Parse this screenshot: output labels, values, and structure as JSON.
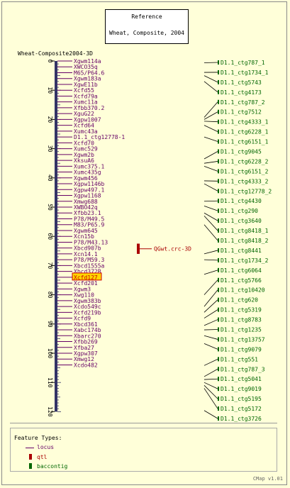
{
  "reference": {
    "line1": "Reference",
    "line2": "Wheat, Composite, 2004"
  },
  "map_title": "Wheat-Composite2004-3D",
  "axis_ticks": [
    "0",
    "10",
    "20",
    "30",
    "40",
    "50",
    "60",
    "70",
    "80",
    "90",
    "100",
    "110",
    "120"
  ],
  "loci": [
    {
      "label": "Xgwm114a",
      "pos": 0.0
    },
    {
      "label": "XWCO35q",
      "pos": 2.0
    },
    {
      "label": "M65/P64.6",
      "pos": 4.0
    },
    {
      "label": "Xgwm183a",
      "pos": 6.0
    },
    {
      "label": "XgwE11b",
      "pos": 8.0
    },
    {
      "label": "Xcfd55",
      "pos": 10.0
    },
    {
      "label": "Xcfd79a",
      "pos": 12.0
    },
    {
      "label": "Xumc11a",
      "pos": 14.0
    },
    {
      "label": "Xfbb370.2",
      "pos": 16.0
    },
    {
      "label": "XguG22",
      "pos": 18.0
    },
    {
      "label": "Xgpw1007",
      "pos": 20.0
    },
    {
      "label": "Xcfd64",
      "pos": 22.0
    },
    {
      "label": "Xumc43a",
      "pos": 24.0
    },
    {
      "label": "D1.1_ctg12778-1",
      "pos": 26.0
    },
    {
      "label": "Xcfd70",
      "pos": 28.0
    },
    {
      "label": "Xumc529",
      "pos": 30.0
    },
    {
      "label": "Xgwm2b",
      "pos": 32.0
    },
    {
      "label": "XksuA6",
      "pos": 34.0
    },
    {
      "label": "Xumc375.1",
      "pos": 36.0
    },
    {
      "label": "Xumc435g",
      "pos": 38.0
    },
    {
      "label": "Xgwm456",
      "pos": 40.0
    },
    {
      "label": "Xgpw1146b",
      "pos": 42.0
    },
    {
      "label": "Xgpw497.1",
      "pos": 44.0
    },
    {
      "label": "Xgpw1168",
      "pos": 46.0
    },
    {
      "label": "Xmwg688",
      "pos": 48.0
    },
    {
      "label": "XWBO42q",
      "pos": 50.0
    },
    {
      "label": "Xfbb23.1",
      "pos": 52.0
    },
    {
      "label": "P78/M49.5",
      "pos": 54.0
    },
    {
      "label": "M83/P65.9",
      "pos": 56.0
    },
    {
      "label": "Xgwm645",
      "pos": 58.0
    },
    {
      "label": "Xcn15b",
      "pos": 60.0
    },
    {
      "label": "P78/M43.13",
      "pos": 62.0
    },
    {
      "label": "Xbcd907b",
      "pos": 64.0
    },
    {
      "label": "Xcn14.1",
      "pos": 66.0
    },
    {
      "label": "P78/M59.3",
      "pos": 68.0
    },
    {
      "label": "Xbcd1555a",
      "pos": 70.0
    },
    {
      "label": "Xbcd372B",
      "pos": 72.0
    },
    {
      "label": "Xcfd127",
      "pos": 74.0,
      "highlight": true
    },
    {
      "label": "Xcfd201",
      "pos": 76.0
    },
    {
      "label": "Xgwm3",
      "pos": 78.0
    },
    {
      "label": "Xwg110",
      "pos": 80.0
    },
    {
      "label": "Xgwm383b",
      "pos": 82.0
    },
    {
      "label": "Xcdo549c",
      "pos": 84.0
    },
    {
      "label": "Xcfd219b",
      "pos": 86.0
    },
    {
      "label": "Xcfd9",
      "pos": 88.0
    },
    {
      "label": "Xbcd361",
      "pos": 90.0
    },
    {
      "label": "Xabc174b",
      "pos": 92.0
    },
    {
      "label": "Xbarc270",
      "pos": 94.0
    },
    {
      "label": "Xfbb269",
      "pos": 96.0
    },
    {
      "label": "Xfba27",
      "pos": 98.0
    },
    {
      "label": "Xgpw307",
      "pos": 100.0
    },
    {
      "label": "Xmwg12",
      "pos": 102.0
    },
    {
      "label": "Xcdo482",
      "pos": 104.0
    }
  ],
  "qtl": {
    "label": "QGwt.crc-3D"
  },
  "contigs": [
    {
      "label": "D1.1_ctg787_1",
      "pos": 0.6
    },
    {
      "label": "D1.1_ctg1734_1",
      "pos": 3.9
    },
    {
      "label": "D1.1_ctg5743",
      "pos": 5.0
    },
    {
      "label": "D1.1_ctg4173",
      "pos": 7.0
    },
    {
      "label": "D1.1_ctg787_2",
      "pos": 19.3
    },
    {
      "label": "D1.1_ctg7512",
      "pos": 20.0
    },
    {
      "label": "D1.1_ctg4333_1",
      "pos": 20.6
    },
    {
      "label": "D1.1_ctg6228_1",
      "pos": 22.0
    },
    {
      "label": "D1.1_ctg6151_1",
      "pos": 26.0
    },
    {
      "label": "D1.1_ctg9045",
      "pos": 33.5
    },
    {
      "label": "D1.1_ctg6228_2",
      "pos": 35.0
    },
    {
      "label": "D1.1_ctg6151_2",
      "pos": 36.0
    },
    {
      "label": "D1.1_ctg4333_2",
      "pos": 41.0
    },
    {
      "label": "D1.1_ctg12778_2",
      "pos": 42.0
    },
    {
      "label": "D1.1_ctg4430",
      "pos": 48.0
    },
    {
      "label": "D1.1_ctg290",
      "pos": 49.6
    },
    {
      "label": "D1.1_ctg3640",
      "pos": 52.0
    },
    {
      "label": "D1.1_ctg8418_1",
      "pos": 53.0
    },
    {
      "label": "D1.1_ctg8418_2",
      "pos": 56.0
    },
    {
      "label": "D1.1_ctg8441",
      "pos": 66.0
    },
    {
      "label": "D1.1_ctg1734_2",
      "pos": 68.0
    },
    {
      "label": "D1.1_ctg6064",
      "pos": 73.0
    },
    {
      "label": "D1.1_ctg5766",
      "pos": 80.0
    },
    {
      "label": "D1.1_ctg10420",
      "pos": 84.0
    },
    {
      "label": "D1.1_ctg620",
      "pos": 86.0
    },
    {
      "label": "D1.1_ctg5319",
      "pos": 88.0
    },
    {
      "label": "D1.1_ctg8783",
      "pos": 90.5
    },
    {
      "label": "D1.1_ctg1235",
      "pos": 92.0
    },
    {
      "label": "D1.1_ctg13757",
      "pos": 94.0
    },
    {
      "label": "D1.1_ctg9079",
      "pos": 96.7
    },
    {
      "label": "D1.1_ctg551",
      "pos": 104.2
    },
    {
      "label": "D1.1_ctg787_3",
      "pos": 108.0
    },
    {
      "label": "D1.1_ctg5041",
      "pos": 109.0
    },
    {
      "label": "D1.1_ctg9019",
      "pos": 110.0
    },
    {
      "label": "D1.1_ctg5195",
      "pos": 111.0
    },
    {
      "label": "D1.1_ctg5172",
      "pos": 112.0
    },
    {
      "label": "D1.1_ctg3726",
      "pos": 119.6
    }
  ],
  "legend": {
    "title": "Feature Types:",
    "items": [
      "locus",
      "qtl",
      "baccontig"
    ]
  },
  "footer": "CMap v1.01",
  "colors": {
    "background": "#ffffd9",
    "locus": "#660066",
    "qtl": "#aa0000",
    "contig": "#006600",
    "highlight": "#ffd700"
  }
}
